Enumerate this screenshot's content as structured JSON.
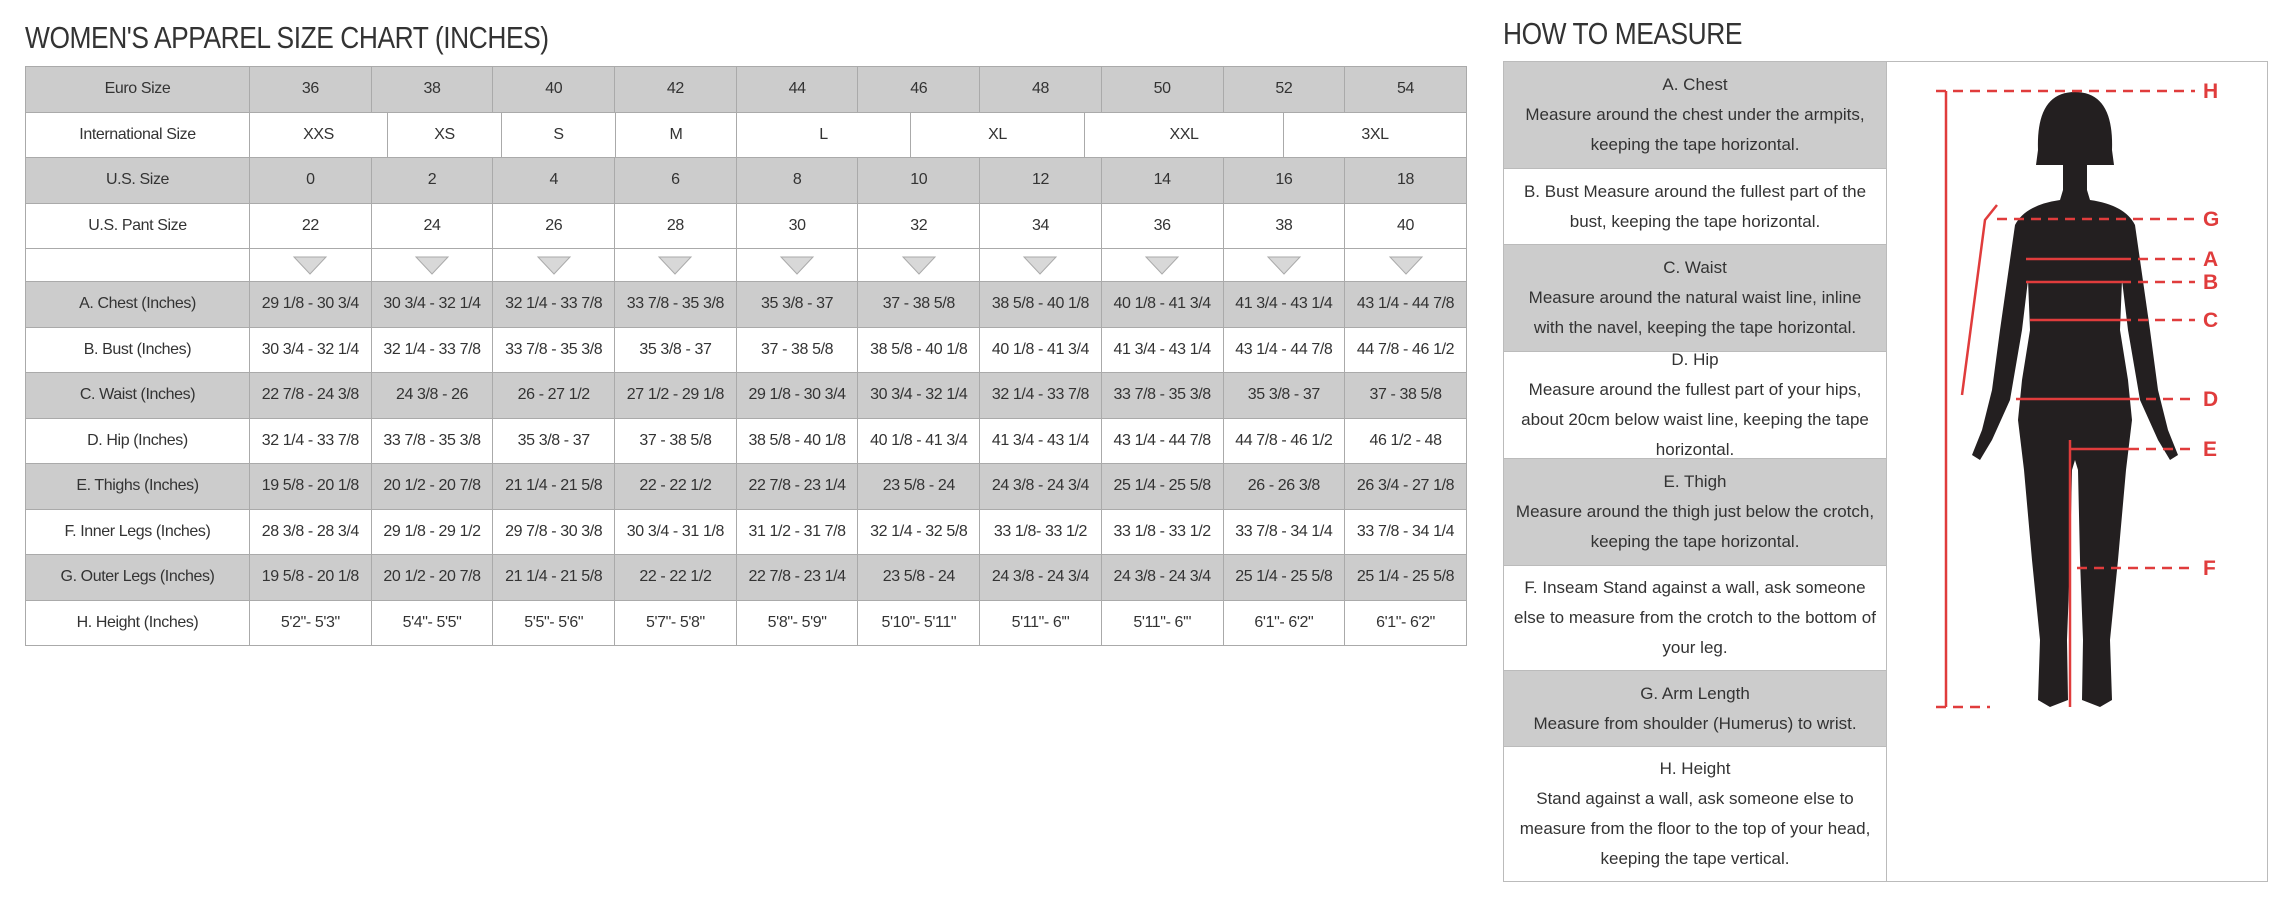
{
  "table": {
    "title": "WOMEN'S APPAREL SIZE CHART (INCHES)",
    "header_rows": [
      {
        "label": "Euro Size",
        "cells": [
          "36",
          "38",
          "40",
          "42",
          "44",
          "46",
          "48",
          "50",
          "52",
          "54"
        ]
      },
      {
        "label": "International Size",
        "cells": [
          "XXS",
          "XS",
          "S",
          "M",
          "L",
          "XL",
          "XXL",
          "3XL"
        ]
      },
      {
        "label": "U.S. Size",
        "cells": [
          "0",
          "2",
          "4",
          "6",
          "8",
          "10",
          "12",
          "14",
          "16",
          "18"
        ]
      },
      {
        "label": "U.S. Pant Size",
        "cells": [
          "22",
          "24",
          "26",
          "28",
          "30",
          "32",
          "34",
          "36",
          "38",
          "40"
        ]
      }
    ],
    "measure_rows": [
      {
        "label": "A. Chest (Inches)",
        "cells": [
          "29 1/8 - 30 3/4",
          "30 3/4 - 32 1/4",
          "32 1/4 - 33 7/8",
          "33 7/8 - 35 3/8",
          "35 3/8 - 37",
          "37 - 38 5/8",
          "38 5/8 - 40 1/8",
          "40 1/8 - 41 3/4",
          "41 3/4 - 43 1/4",
          "43 1/4 - 44 7/8"
        ]
      },
      {
        "label": "B. Bust (Inches)",
        "cells": [
          "30 3/4 - 32 1/4",
          "32 1/4 - 33 7/8",
          "33 7/8 - 35 3/8",
          "35 3/8 - 37",
          "37 - 38 5/8",
          "38 5/8 - 40 1/8",
          "40 1/8 - 41 3/4",
          "41 3/4 - 43 1/4",
          "43 1/4 - 44 7/8",
          "44 7/8 - 46 1/2"
        ]
      },
      {
        "label": "C. Waist (Inches)",
        "cells": [
          "22 7/8 - 24 3/8",
          "24 3/8 - 26",
          "26 - 27 1/2",
          "27 1/2 - 29 1/8",
          "29 1/8 - 30 3/4",
          "30 3/4 - 32 1/4",
          "32 1/4 - 33 7/8",
          "33 7/8 - 35 3/8",
          "35 3/8 - 37",
          "37 - 38 5/8"
        ]
      },
      {
        "label": "D. Hip (Inches)",
        "cells": [
          "32 1/4 - 33 7/8",
          "33 7/8 - 35 3/8",
          "35 3/8 - 37",
          "37 - 38 5/8",
          "38 5/8 - 40 1/8",
          "40 1/8 - 41 3/4",
          "41 3/4 - 43 1/4",
          "43 1/4 - 44 7/8",
          "44 7/8 - 46 1/2",
          "46 1/2 - 48"
        ]
      },
      {
        "label": "E. Thighs (Inches)",
        "cells": [
          "19 5/8 - 20 1/8",
          "20 1/2 - 20 7/8",
          "21 1/4 - 21 5/8",
          "22 - 22 1/2",
          "22 7/8 - 23 1/4",
          "23 5/8 - 24",
          "24 3/8 - 24 3/4",
          "25 1/4 - 25 5/8",
          "26 - 26 3/8",
          "26 3/4 - 27 1/8"
        ]
      },
      {
        "label": "F. Inner Legs (Inches)",
        "cells": [
          "28 3/8 - 28 3/4",
          "29 1/8 - 29 1/2",
          "29 7/8 - 30 3/8",
          "30 3/4 - 31 1/8",
          "31 1/2 - 31 7/8",
          "32 1/4 - 32 5/8",
          "33 1/8- 33 1/2",
          "33 1/8 - 33 1/2",
          "33 7/8 - 34 1/4",
          "33 7/8 - 34 1/4"
        ]
      },
      {
        "label": "G. Outer Legs (Inches)",
        "cells": [
          "19 5/8 - 20 1/8",
          "20 1/2 - 20 7/8",
          "21 1/4 - 21 5/8",
          "22 - 22 1/2",
          "22 7/8 - 23 1/4",
          "23 5/8 - 24",
          "24 3/8 - 24 3/4",
          "24 3/8 - 24 3/4",
          "25 1/4 - 25 5/8",
          "25 1/4 - 25 5/8"
        ]
      },
      {
        "label": "H. Height (Inches)",
        "cells": [
          "5'2\"- 5'3\"",
          "5'4\"- 5'5\"",
          "5'5\"- 5'6\"",
          "5'7\"- 5'8\"",
          "5'8\"- 5'9\"",
          "5'10\"- 5'11\"",
          "5'11\"- 6'\"",
          "5'11\"- 6'\"",
          "6'1\"- 6'2\"",
          "6'1\"- 6'2\""
        ]
      }
    ]
  },
  "measure": {
    "title": "HOW TO MEASURE",
    "items": [
      {
        "title": "A. Chest",
        "text": "Measure around the chest under the armpits, keeping the tape horizontal."
      },
      {
        "text": "B. Bust Measure around the fullest part of the bust, keeping the tape horizontal."
      },
      {
        "title": "C. Waist",
        "text": "Measure around the natural waist line, inline with the navel, keeping the tape horizontal."
      },
      {
        "title": "D. Hip",
        "text": "Measure around the fullest part of your hips, about 20cm below waist line, keeping the tape horizontal."
      },
      {
        "title": "E. Thigh",
        "text": "Measure around the thigh just below the crotch, keeping the tape horizontal."
      },
      {
        "text": "F. Inseam Stand against a wall, ask someone else to measure from the crotch to the bottom of your leg."
      },
      {
        "title": "G. Arm Length",
        "text": "Measure from shoulder (Humerus) to wrist."
      },
      {
        "title": "H. Height",
        "text": "Stand against a wall, ask someone else to measure from the floor to the top of your head, keeping the tape vertical."
      }
    ],
    "figure_labels": [
      "H",
      "G",
      "A",
      "B",
      "C",
      "D",
      "E",
      "F"
    ]
  }
}
